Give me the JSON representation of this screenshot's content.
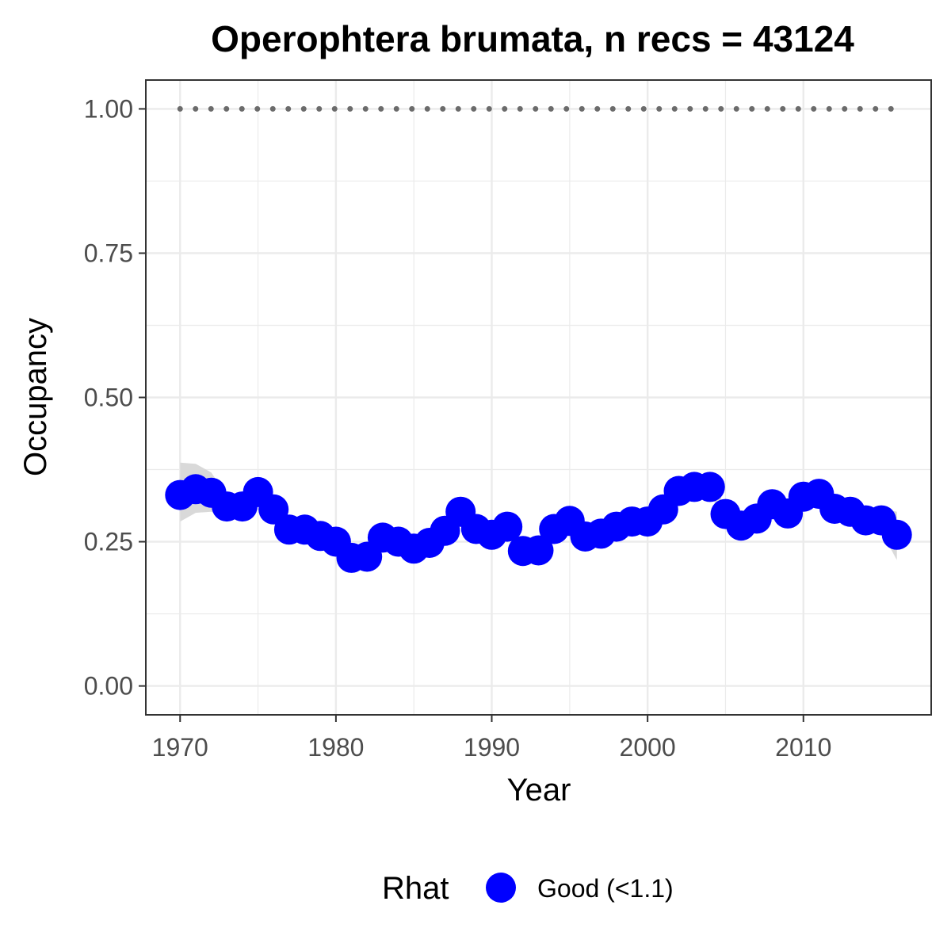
{
  "chart_data": {
    "type": "line",
    "title": "Operophtera brumata, n recs = 43124",
    "xlabel": "Year",
    "ylabel": "Occupancy",
    "xlim": [
      1967.8,
      2018.2
    ],
    "ylim": [
      -0.05,
      1.05
    ],
    "x_ticks": [
      1970,
      1980,
      1990,
      2000,
      2010
    ],
    "x_tick_labels": [
      "1970",
      "1980",
      "1990",
      "2000",
      "2010"
    ],
    "y_ticks": [
      0,
      0.25,
      0.5,
      0.75,
      1
    ],
    "y_tick_labels": [
      "0.00",
      "0.25",
      "0.50",
      "0.75",
      "1.00"
    ],
    "grid": true,
    "legend": {
      "title": "Rhat",
      "position": "bottom",
      "items": [
        {
          "label": "Good (<1.1)",
          "color": "#0000ff"
        }
      ]
    },
    "colors": {
      "points": "#0000ff",
      "ribbon": "#d9d9d9",
      "reference_line": "#6b6b6b",
      "grid": "#ebebeb",
      "panel_border": "#333333"
    },
    "reference_line": {
      "y": 1.0,
      "style": "dotted",
      "x_from": 1970,
      "x_to": 2016
    },
    "x": [
      1970,
      1971,
      1972,
      1973,
      1974,
      1975,
      1976,
      1977,
      1978,
      1979,
      1980,
      1981,
      1982,
      1983,
      1984,
      1985,
      1986,
      1987,
      1988,
      1989,
      1990,
      1991,
      1992,
      1993,
      1994,
      1995,
      1996,
      1997,
      1998,
      1999,
      2000,
      2001,
      2002,
      2003,
      2004,
      2005,
      2006,
      2007,
      2008,
      2009,
      2010,
      2011,
      2012,
      2013,
      2014,
      2015,
      2016
    ],
    "series": [
      {
        "values": [
          0.331,
          0.341,
          0.335,
          0.311,
          0.311,
          0.336,
          0.306,
          0.271,
          0.271,
          0.26,
          0.25,
          0.222,
          0.224,
          0.257,
          0.25,
          0.238,
          0.248,
          0.269,
          0.302,
          0.272,
          0.262,
          0.276,
          0.234,
          0.235,
          0.272,
          0.286,
          0.259,
          0.264,
          0.276,
          0.285,
          0.285,
          0.306,
          0.338,
          0.345,
          0.345,
          0.298,
          0.278,
          0.29,
          0.315,
          0.299,
          0.328,
          0.333,
          0.307,
          0.302,
          0.287,
          0.287,
          0.262
        ],
        "lower": [
          0.285,
          0.3,
          0.302,
          0.295,
          0.296,
          0.315,
          0.29,
          0.258,
          0.258,
          0.247,
          0.237,
          0.21,
          0.212,
          0.245,
          0.238,
          0.226,
          0.236,
          0.257,
          0.289,
          0.26,
          0.25,
          0.263,
          0.222,
          0.223,
          0.259,
          0.273,
          0.247,
          0.252,
          0.264,
          0.272,
          0.272,
          0.293,
          0.325,
          0.332,
          0.332,
          0.286,
          0.266,
          0.278,
          0.302,
          0.287,
          0.315,
          0.32,
          0.294,
          0.289,
          0.273,
          0.268,
          0.218
        ],
        "upper": [
          0.387,
          0.385,
          0.37,
          0.33,
          0.328,
          0.362,
          0.324,
          0.285,
          0.285,
          0.274,
          0.264,
          0.235,
          0.237,
          0.27,
          0.263,
          0.251,
          0.261,
          0.282,
          0.316,
          0.285,
          0.275,
          0.289,
          0.247,
          0.248,
          0.285,
          0.3,
          0.272,
          0.277,
          0.289,
          0.298,
          0.298,
          0.32,
          0.352,
          0.359,
          0.359,
          0.311,
          0.291,
          0.303,
          0.329,
          0.312,
          0.342,
          0.347,
          0.321,
          0.316,
          0.302,
          0.308,
          0.302
        ]
      }
    ]
  }
}
